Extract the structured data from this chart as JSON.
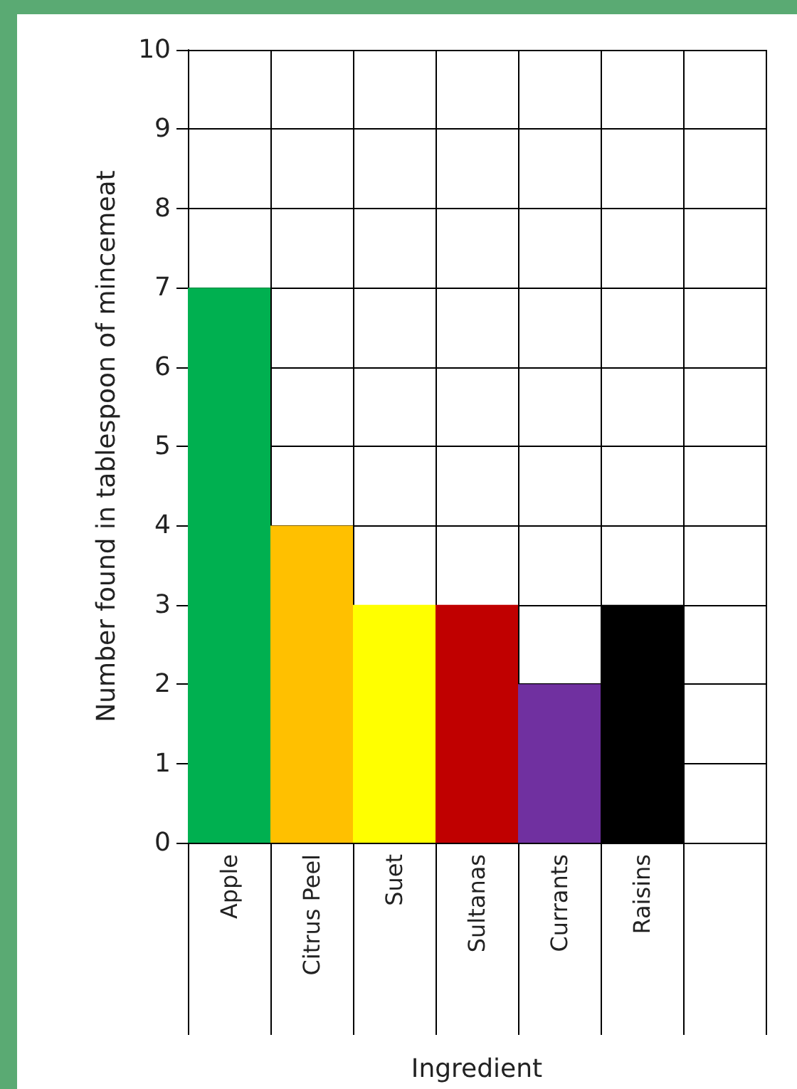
{
  "chart_data": {
    "type": "bar",
    "xlabel": "Ingredient",
    "ylabel": "Number found in tablespoon of mincemeat",
    "categories": [
      "Apple",
      "Citrus Peel",
      "Suet",
      "Sultanas",
      "Currants",
      "Raisins",
      null
    ],
    "values": [
      7,
      4,
      3,
      3,
      2,
      3,
      null
    ],
    "colors": [
      "#00b050",
      "#ffc000",
      "#ffff00",
      "#c00000",
      "#7030a0",
      "#000000",
      null
    ],
    "ylim": [
      0,
      10
    ],
    "yticks": [
      0,
      1,
      2,
      3,
      4,
      5,
      6,
      7,
      8,
      9,
      10
    ],
    "grid": true
  }
}
